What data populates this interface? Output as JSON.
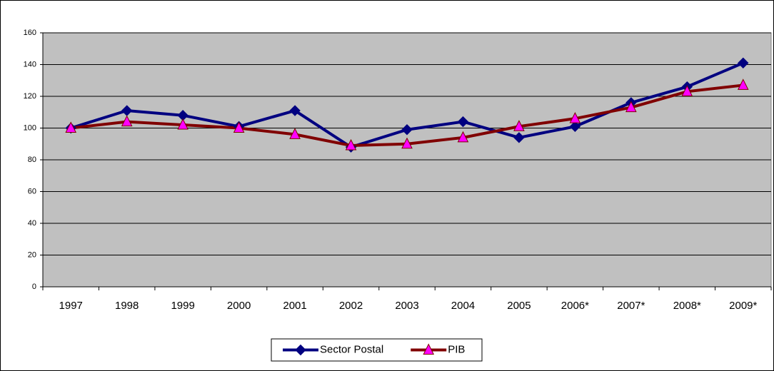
{
  "chart_data": {
    "type": "line",
    "categories": [
      "1997",
      "1998",
      "1999",
      "2000",
      "2001",
      "2002",
      "2003",
      "2004",
      "2005",
      "2006*",
      "2007*",
      "2008*",
      "2009*"
    ],
    "series": [
      {
        "name": "Sector Postal",
        "color": "#000080",
        "marker": "diamond",
        "marker_color": "#000080",
        "values": [
          100,
          111,
          108,
          101,
          111,
          88,
          99,
          104,
          94,
          101,
          116,
          126,
          141
        ]
      },
      {
        "name": "PIB",
        "color": "#800000",
        "marker": "triangle",
        "marker_color": "#ff00ff",
        "values": [
          100,
          104,
          102,
          100,
          96,
          89,
          90,
          94,
          101,
          106,
          113,
          123,
          127
        ]
      }
    ],
    "ylim": [
      0,
      160
    ],
    "yticks": [
      0,
      20,
      40,
      60,
      80,
      100,
      120,
      140,
      160
    ],
    "grid": true,
    "legend": "bottom",
    "plot_background": "#c0c0c0"
  }
}
